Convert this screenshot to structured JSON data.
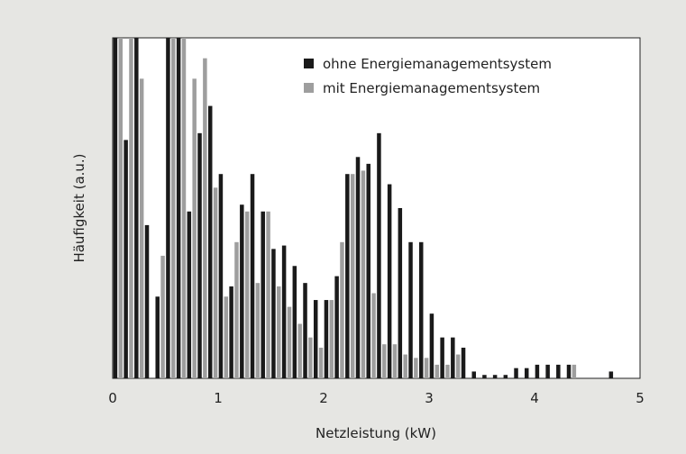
{
  "chart_data": {
    "type": "bar",
    "title": "",
    "xlabel": "Netzleistung (kW)",
    "ylabel": "Häufigkeit  (a.u.)",
    "xlim": [
      0,
      5
    ],
    "ylim": [
      0,
      100
    ],
    "xticks": [
      "0",
      "1",
      "2",
      "3",
      "4",
      "5"
    ],
    "grid": false,
    "legend_position": "top-right",
    "bin_width": 0.1,
    "series": [
      {
        "name": "ohne Energiemanagementsystem",
        "color": "#1a1a1a",
        "x": [
          0.05,
          0.15,
          0.25,
          0.35,
          0.45,
          0.55,
          0.65,
          0.75,
          0.85,
          0.95,
          1.05,
          1.15,
          1.25,
          1.35,
          1.45,
          1.55,
          1.65,
          1.75,
          1.85,
          1.95,
          2.05,
          2.15,
          2.25,
          2.35,
          2.45,
          2.55,
          2.65,
          2.75,
          2.85,
          2.95,
          3.05,
          3.15,
          3.25,
          3.35,
          3.45,
          3.55,
          3.65,
          3.75,
          3.85,
          3.95,
          4.05,
          4.15,
          4.25,
          4.35,
          4.45,
          4.55,
          4.65,
          4.75,
          4.85
        ],
        "values": [
          100,
          70,
          100,
          45,
          24,
          100,
          100,
          49,
          72,
          80,
          60,
          27,
          51,
          60,
          49,
          38,
          39,
          33,
          28,
          23,
          23,
          30,
          60,
          65,
          63,
          72,
          57,
          50,
          40,
          40,
          19,
          12,
          12,
          9,
          2,
          1,
          1,
          1,
          3,
          3,
          4,
          4,
          4,
          4,
          0,
          0,
          0,
          2,
          0
        ]
      },
      {
        "name": "mit Energiemanagementsystem",
        "color": "#9e9e9e",
        "x": [
          0.05,
          0.15,
          0.25,
          0.35,
          0.45,
          0.55,
          0.65,
          0.75,
          0.85,
          0.95,
          1.05,
          1.15,
          1.25,
          1.35,
          1.45,
          1.55,
          1.65,
          1.75,
          1.85,
          1.95,
          2.05,
          2.15,
          2.25,
          2.35,
          2.45,
          2.55,
          2.65,
          2.75,
          2.85,
          2.95,
          3.05,
          3.15,
          3.25,
          3.35,
          3.45,
          3.55,
          3.65,
          3.75,
          3.85,
          3.95,
          4.05,
          4.15,
          4.25,
          4.35,
          4.45,
          4.55,
          4.65,
          4.75,
          4.85
        ],
        "values": [
          100,
          100,
          88,
          0,
          36,
          100,
          100,
          88,
          94,
          56,
          24,
          40,
          49,
          28,
          49,
          27,
          21,
          16,
          12,
          9,
          23,
          40,
          60,
          61,
          25,
          10,
          10,
          7,
          6,
          6,
          4,
          4,
          7,
          0,
          0,
          0,
          0,
          0,
          0,
          0,
          0,
          0,
          0,
          4,
          0,
          0,
          0,
          0,
          0
        ]
      }
    ]
  }
}
